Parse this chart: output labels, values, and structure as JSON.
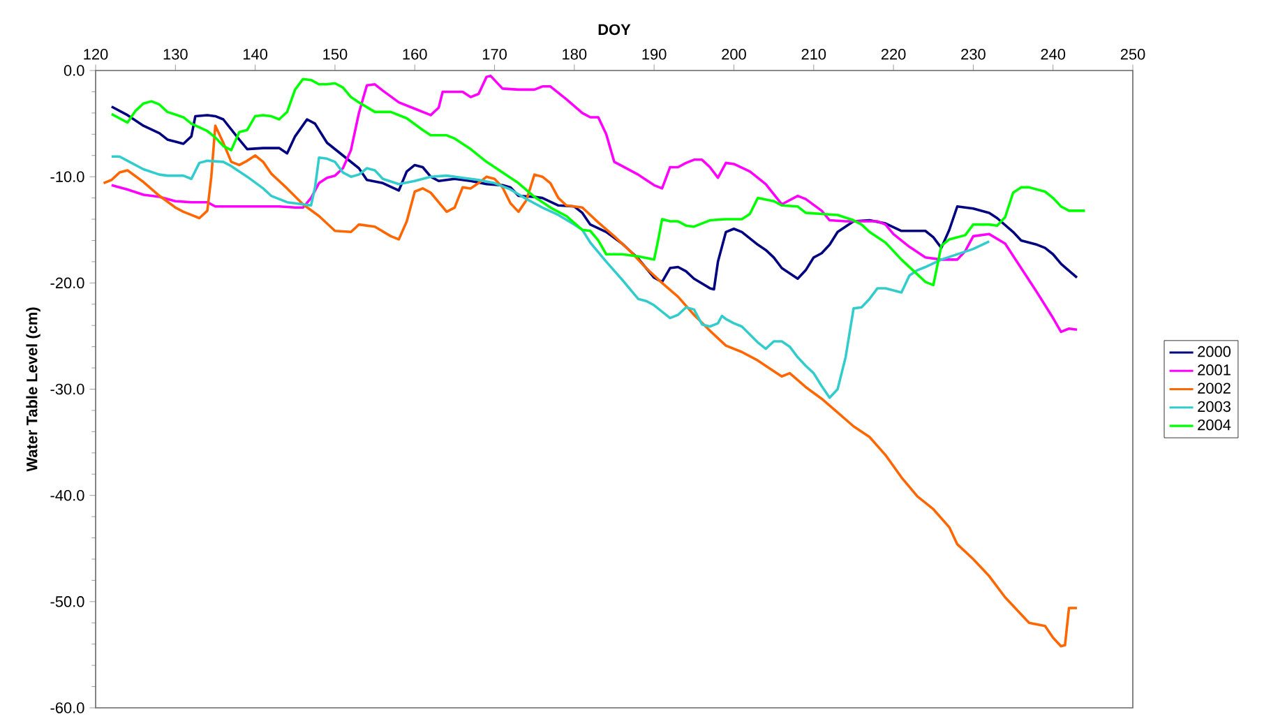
{
  "chart_data": {
    "type": "line",
    "xlabel": "DOY",
    "ylabel": "Water Table Level (cm)",
    "xlim": [
      120,
      250
    ],
    "xticks": [
      120,
      130,
      140,
      150,
      160,
      170,
      180,
      190,
      200,
      210,
      220,
      230,
      240,
      250
    ],
    "ylim": [
      -60,
      0
    ],
    "yticks": [
      {
        "value": 0,
        "label": "0.0"
      },
      {
        "value": -10,
        "label": "-10.0"
      },
      {
        "value": -20,
        "label": "-20.0"
      },
      {
        "value": -30,
        "label": "-30.0"
      },
      {
        "value": -40,
        "label": "-40.0"
      },
      {
        "value": -50,
        "label": "-50.0"
      },
      {
        "value": -60,
        "label": "-60.0"
      }
    ],
    "grid": false,
    "legend": "right",
    "marker": "none",
    "line_style": "solid",
    "series": [
      {
        "name": "2000",
        "color": "#000080",
        "x": [
          122,
          124,
          126,
          128,
          129,
          131,
          132,
          132.5,
          134,
          135,
          136,
          138,
          139,
          141,
          143,
          144,
          145,
          146.5,
          147.5,
          149,
          151,
          153,
          154,
          156,
          158,
          159,
          160,
          161,
          162,
          163,
          165,
          167,
          169,
          171,
          172,
          173,
          175,
          176,
          178,
          180,
          181,
          182,
          184,
          186,
          188,
          190,
          191,
          192,
          193,
          194,
          195,
          197,
          197.5,
          198,
          199,
          200,
          201,
          203,
          204,
          205,
          206,
          208,
          209,
          210,
          211,
          212,
          213,
          215,
          217,
          219,
          221,
          223,
          224,
          225,
          226,
          227,
          228,
          229,
          230,
          232,
          233,
          235,
          236,
          238,
          239,
          240,
          241,
          243
        ],
        "values": [
          -3.4,
          -4.2,
          -5.2,
          -5.9,
          -6.5,
          -6.9,
          -6.2,
          -4.3,
          -4.2,
          -4.3,
          -4.6,
          -6.5,
          -7.4,
          -7.3,
          -7.3,
          -7.8,
          -6.2,
          -4.6,
          -5.0,
          -6.8,
          -8.0,
          -9.2,
          -10.3,
          -10.6,
          -11.3,
          -9.5,
          -8.9,
          -9.1,
          -10.0,
          -10.4,
          -10.2,
          -10.4,
          -10.7,
          -10.8,
          -11.0,
          -11.8,
          -11.9,
          -12.0,
          -12.7,
          -12.8,
          -13.4,
          -14.5,
          -15.2,
          -16.3,
          -17.7,
          -19.5,
          -19.9,
          -18.6,
          -18.5,
          -18.9,
          -19.6,
          -20.5,
          -20.6,
          -18.0,
          -15.2,
          -14.9,
          -15.2,
          -16.4,
          -16.9,
          -17.6,
          -18.6,
          -19.6,
          -18.8,
          -17.6,
          -17.2,
          -16.4,
          -15.2,
          -14.2,
          -14.1,
          -14.4,
          -15.1,
          -15.1,
          -15.1,
          -15.7,
          -16.7,
          -15.0,
          -12.8,
          -12.9,
          -13.0,
          -13.4,
          -13.9,
          -15.2,
          -16.0,
          -16.4,
          -16.7,
          -17.3,
          -18.2,
          -19.5
        ]
      },
      {
        "name": "2001",
        "color": "#ff00ff",
        "x": [
          122,
          124,
          126,
          128,
          130,
          132,
          134,
          135,
          138,
          140,
          143,
          145,
          146,
          147,
          148,
          149,
          150,
          151,
          152,
          153,
          154,
          155,
          156,
          158,
          160,
          162,
          163,
          163.5,
          165,
          166,
          167,
          168,
          169,
          169.5,
          171,
          173,
          175,
          176,
          177,
          179,
          181,
          182,
          183,
          184,
          185,
          186,
          188,
          190,
          191,
          192,
          193,
          194,
          195,
          196,
          197,
          198,
          199,
          200,
          202,
          204,
          206,
          208,
          209,
          211,
          212,
          214,
          216,
          218,
          219,
          220,
          222,
          224,
          226,
          228,
          229,
          230,
          232,
          234,
          236,
          238,
          240,
          241,
          242,
          243
        ],
        "values": [
          -10.8,
          -11.2,
          -11.7,
          -11.9,
          -12.3,
          -12.4,
          -12.4,
          -12.8,
          -12.8,
          -12.8,
          -12.8,
          -12.9,
          -12.9,
          -12.0,
          -10.6,
          -10.1,
          -9.9,
          -9.2,
          -7.5,
          -4.0,
          -1.4,
          -1.3,
          -1.9,
          -3.0,
          -3.6,
          -4.2,
          -3.5,
          -2.0,
          -2.0,
          -2.0,
          -2.5,
          -2.2,
          -0.6,
          -0.5,
          -1.7,
          -1.8,
          -1.8,
          -1.5,
          -1.5,
          -2.7,
          -4.0,
          -4.4,
          -4.4,
          -6.0,
          -8.6,
          -9.0,
          -9.8,
          -10.8,
          -11.1,
          -9.1,
          -9.1,
          -8.7,
          -8.4,
          -8.4,
          -9.1,
          -10.1,
          -8.7,
          -8.8,
          -9.5,
          -10.7,
          -12.6,
          -11.8,
          -12.1,
          -13.2,
          -14.1,
          -14.2,
          -14.2,
          -14.2,
          -14.5,
          -15.4,
          -16.6,
          -17.6,
          -17.8,
          -17.8,
          -17.0,
          -15.6,
          -15.4,
          -16.3,
          -18.6,
          -20.9,
          -23.3,
          -24.6,
          -24.3,
          -24.4
        ]
      },
      {
        "name": "2002",
        "color": "#ff6600",
        "x": [
          121,
          122,
          123,
          124,
          126,
          128,
          130,
          131,
          132,
          133,
          134,
          134.5,
          135,
          136,
          137,
          138,
          139,
          140,
          141,
          142,
          144,
          146,
          148,
          150,
          152,
          153,
          155,
          157,
          158,
          159,
          160,
          161,
          162,
          164,
          165,
          166,
          167,
          168,
          169,
          170,
          171,
          172,
          173,
          174,
          175,
          176,
          177,
          178,
          179,
          181,
          183,
          185,
          187,
          189,
          191,
          193,
          195,
          197,
          199,
          201,
          203,
          205,
          206,
          207,
          209,
          211,
          213,
          215,
          217,
          219,
          221,
          223,
          225,
          227,
          228,
          230,
          232,
          234,
          236,
          237,
          239,
          240,
          241,
          241.5,
          242,
          243
        ],
        "values": [
          -10.6,
          -10.3,
          -9.6,
          -9.4,
          -10.5,
          -11.8,
          -12.9,
          -13.3,
          -13.6,
          -13.9,
          -13.2,
          -10.0,
          -5.2,
          -6.8,
          -8.6,
          -8.9,
          -8.5,
          -8.0,
          -8.6,
          -9.7,
          -11.1,
          -12.6,
          -13.7,
          -15.1,
          -15.2,
          -14.5,
          -14.7,
          -15.6,
          -15.9,
          -14.2,
          -11.4,
          -11.1,
          -11.5,
          -13.3,
          -12.9,
          -11.0,
          -11.1,
          -10.6,
          -10.0,
          -10.2,
          -11.0,
          -12.5,
          -13.3,
          -12.2,
          -9.8,
          -10.0,
          -10.6,
          -12.0,
          -12.7,
          -12.9,
          -14.3,
          -15.6,
          -17.0,
          -18.6,
          -20.0,
          -21.3,
          -23.0,
          -24.5,
          -25.9,
          -26.5,
          -27.3,
          -28.3,
          -28.8,
          -28.5,
          -29.8,
          -30.9,
          -32.2,
          -33.5,
          -34.5,
          -36.2,
          -38.3,
          -40.1,
          -41.3,
          -43.0,
          -44.6,
          -46.0,
          -47.6,
          -49.6,
          -51.2,
          -52.0,
          -52.3,
          -53.4,
          -54.2,
          -54.1,
          -50.6,
          -50.6
        ]
      },
      {
        "name": "2003",
        "color": "#33cccc",
        "x": [
          122,
          123,
          124,
          126,
          128,
          129,
          131,
          132,
          133,
          134,
          136,
          137,
          139,
          141,
          142,
          144,
          146,
          147,
          147.5,
          148,
          149,
          150,
          151,
          152,
          153,
          154,
          155,
          156,
          158,
          160,
          162,
          164,
          166,
          168,
          170,
          172,
          174,
          176,
          178,
          180,
          181,
          182,
          184,
          186,
          188,
          189,
          190,
          192,
          193,
          194,
          195,
          196,
          197,
          198,
          198.5,
          199,
          200,
          201,
          203,
          204,
          205,
          206,
          207,
          208,
          209,
          210,
          211,
          212,
          213,
          214,
          215,
          216,
          217,
          218,
          219,
          220,
          221,
          222,
          223,
          224,
          226,
          228,
          230,
          232
        ],
        "values": [
          -8.1,
          -8.1,
          -8.5,
          -9.3,
          -9.8,
          -9.9,
          -9.9,
          -10.2,
          -8.7,
          -8.5,
          -8.6,
          -9.0,
          -10.0,
          -11.1,
          -11.8,
          -12.4,
          -12.6,
          -12.7,
          -11.0,
          -8.2,
          -8.3,
          -8.6,
          -9.6,
          -10.0,
          -9.8,
          -9.2,
          -9.4,
          -10.2,
          -10.7,
          -10.4,
          -10.0,
          -9.9,
          -10.1,
          -10.3,
          -10.6,
          -11.2,
          -12.1,
          -12.9,
          -13.6,
          -14.5,
          -15.0,
          -16.2,
          -18.0,
          -19.7,
          -21.5,
          -21.7,
          -22.1,
          -23.3,
          -23.0,
          -22.3,
          -22.5,
          -23.9,
          -24.1,
          -23.8,
          -23.1,
          -23.4,
          -23.8,
          -24.1,
          -25.6,
          -26.2,
          -25.5,
          -25.5,
          -26.0,
          -27.0,
          -27.8,
          -28.5,
          -29.7,
          -30.8,
          -30.0,
          -27.0,
          -22.4,
          -22.3,
          -21.5,
          -20.5,
          -20.5,
          -20.7,
          -20.9,
          -19.3,
          -18.8,
          -18.5,
          -17.8,
          -17.3,
          -16.8,
          -16.1
        ]
      },
      {
        "name": "2004",
        "color": "#00ff00",
        "x": [
          122,
          123,
          124,
          125,
          126,
          127,
          128,
          129,
          131,
          132,
          134,
          135,
          136,
          137,
          138,
          139,
          140,
          141,
          142,
          143,
          144,
          145,
          146,
          147,
          148,
          149,
          150,
          151,
          152,
          153,
          155,
          157,
          159,
          161,
          162,
          164,
          165,
          167,
          169,
          171,
          173,
          175,
          177,
          179,
          181,
          182,
          183,
          184,
          186,
          188,
          190,
          190.5,
          191,
          192,
          193,
          194,
          195,
          197,
          199,
          201,
          202,
          203,
          205,
          206,
          208,
          209,
          211,
          213,
          215,
          216,
          217,
          219,
          221,
          223,
          224,
          225,
          226,
          227,
          229,
          230,
          232,
          233,
          234,
          235,
          236,
          237,
          239,
          240,
          241,
          242,
          244
        ],
        "values": [
          -4.1,
          -4.5,
          -4.9,
          -3.8,
          -3.1,
          -2.9,
          -3.2,
          -3.9,
          -4.4,
          -5.0,
          -5.7,
          -6.3,
          -7.1,
          -7.5,
          -5.8,
          -5.6,
          -4.3,
          -4.2,
          -4.3,
          -4.6,
          -3.9,
          -1.8,
          -0.8,
          -0.9,
          -1.3,
          -1.3,
          -1.2,
          -1.6,
          -2.5,
          -3.0,
          -3.9,
          -3.9,
          -4.5,
          -5.6,
          -6.1,
          -6.1,
          -6.4,
          -7.4,
          -8.6,
          -9.6,
          -10.6,
          -11.9,
          -12.9,
          -13.7,
          -15.0,
          -15.1,
          -16.0,
          -17.3,
          -17.3,
          -17.5,
          -17.8,
          -16.0,
          -14.0,
          -14.2,
          -14.2,
          -14.6,
          -14.7,
          -14.1,
          -14.0,
          -14.0,
          -13.5,
          -12.0,
          -12.3,
          -12.7,
          -12.8,
          -13.4,
          -13.5,
          -13.6,
          -14.1,
          -14.5,
          -15.2,
          -16.2,
          -17.8,
          -19.2,
          -19.9,
          -20.2,
          -16.5,
          -15.9,
          -15.5,
          -14.5,
          -14.5,
          -14.6,
          -13.8,
          -11.5,
          -11.0,
          -11.0,
          -11.4,
          -12.0,
          -12.8,
          -13.2,
          -13.2
        ]
      }
    ]
  }
}
